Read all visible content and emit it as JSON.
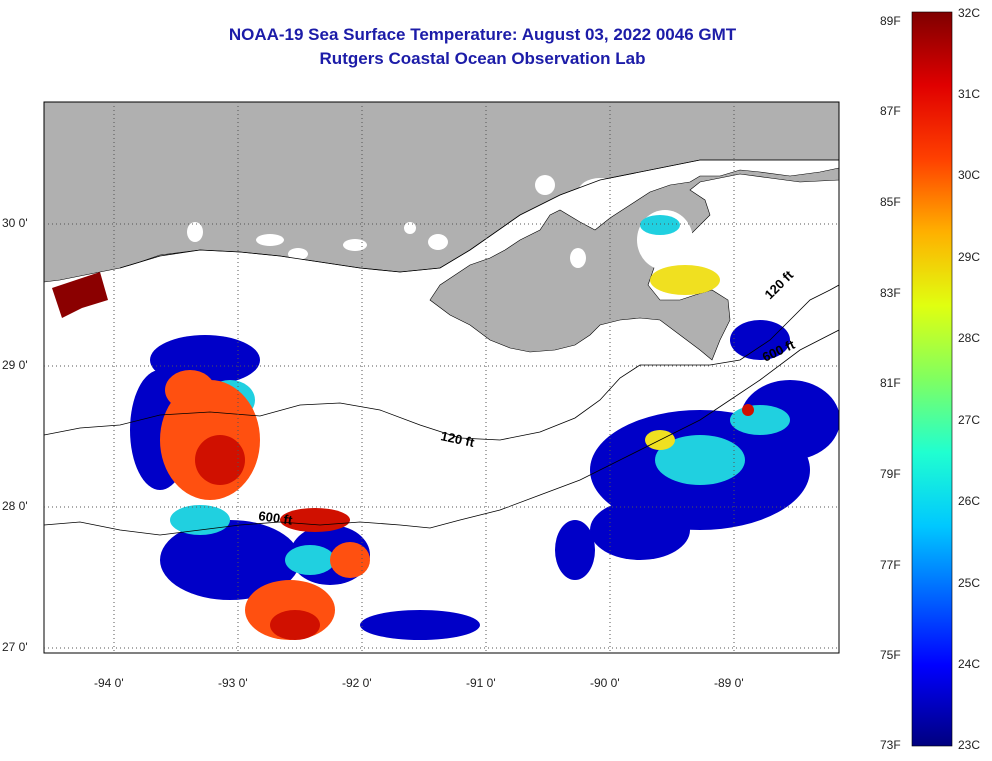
{
  "title_line1": "NOAA-19 Sea Surface Temperature:  August 03, 2022 0046 GMT",
  "title_line2": "Rutgers Coastal Ocean Observation Lab",
  "lon_labels": [
    "-94 0'",
    "-93 0'",
    "-92 0'",
    "-91 0'",
    "-90 0'",
    "-89 0'"
  ],
  "lat_labels": [
    "30 0'",
    "29 0'",
    "28 0'",
    "27 0'"
  ],
  "contour_labels": [
    "120 ft",
    "600 ft",
    "120 ft",
    "600 ft"
  ],
  "colorbar": {
    "fahrenheit": [
      "89F",
      "87F",
      "85F",
      "83F",
      "81F",
      "79F",
      "77F",
      "75F",
      "73F"
    ],
    "celsius": [
      "32C",
      "31C",
      "30C",
      "29C",
      "28C",
      "27C",
      "26C",
      "25C",
      "24C",
      "23C"
    ]
  },
  "colors": {
    "land": "#b0b0b0",
    "title": "#1c1ca8",
    "cold": "#00008b",
    "hot": "#8b0000"
  }
}
